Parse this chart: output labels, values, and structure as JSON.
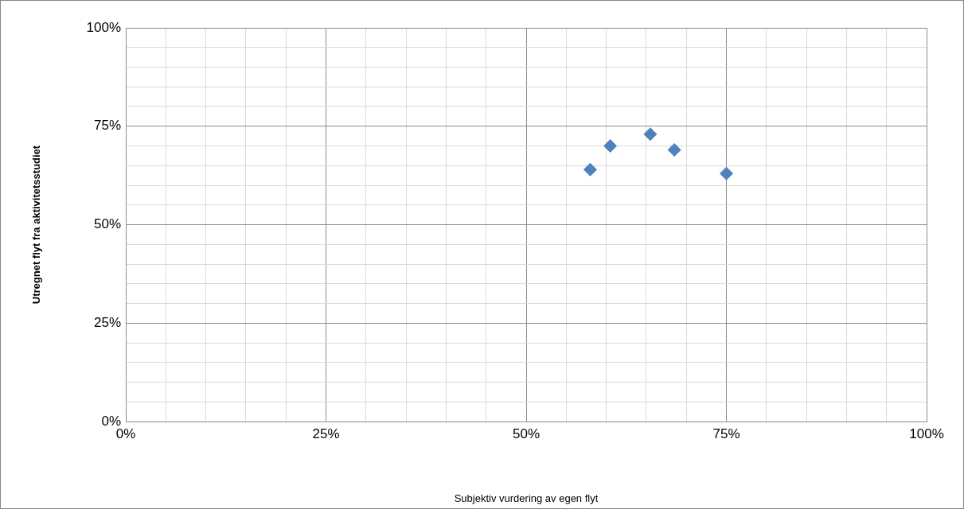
{
  "chart_data": {
    "type": "scatter",
    "xlabel": "Subjektiv vurdering av egen flyt",
    "ylabel": "Utregnet flyt fra aktivitetsstudiet",
    "x": [
      58,
      60.5,
      65.5,
      68.5,
      75
    ],
    "series": [
      {
        "color": "#4f81bd",
        "values": [
          64,
          70,
          73,
          69,
          63
        ]
      }
    ],
    "marker": "diamond",
    "grid": true,
    "legend": false,
    "xlim": [
      0,
      100
    ],
    "ylim": [
      0,
      100
    ],
    "xticks": [
      {
        "value": 0,
        "label": "0%"
      },
      {
        "value": 5,
        "label": null
      },
      {
        "value": 10,
        "label": null
      },
      {
        "value": 15,
        "label": null
      },
      {
        "value": 20,
        "label": null
      },
      {
        "value": 25,
        "label": "25%"
      },
      {
        "value": 30,
        "label": null
      },
      {
        "value": 35,
        "label": null
      },
      {
        "value": 40,
        "label": null
      },
      {
        "value": 45,
        "label": null
      },
      {
        "value": 50,
        "label": "50%"
      },
      {
        "value": 55,
        "label": null
      },
      {
        "value": 60,
        "label": null
      },
      {
        "value": 65,
        "label": null
      },
      {
        "value": 70,
        "label": null
      },
      {
        "value": 75,
        "label": "75%"
      },
      {
        "value": 80,
        "label": null
      },
      {
        "value": 85,
        "label": null
      },
      {
        "value": 90,
        "label": null
      },
      {
        "value": 95,
        "label": null
      },
      {
        "value": 100,
        "label": "100%"
      }
    ],
    "yticks": [
      {
        "value": 0,
        "label": "0%"
      },
      {
        "value": 5,
        "label": null
      },
      {
        "value": 10,
        "label": null
      },
      {
        "value": 15,
        "label": null
      },
      {
        "value": 20,
        "label": null
      },
      {
        "value": 25,
        "label": "25%"
      },
      {
        "value": 30,
        "label": null
      },
      {
        "value": 35,
        "label": null
      },
      {
        "value": 40,
        "label": null
      },
      {
        "value": 45,
        "label": null
      },
      {
        "value": 50,
        "label": "50%"
      },
      {
        "value": 55,
        "label": null
      },
      {
        "value": 60,
        "label": null
      },
      {
        "value": 65,
        "label": null
      },
      {
        "value": 70,
        "label": null
      },
      {
        "value": 75,
        "label": "75%"
      },
      {
        "value": 80,
        "label": null
      },
      {
        "value": 85,
        "label": null
      },
      {
        "value": 90,
        "label": null
      },
      {
        "value": 95,
        "label": null
      },
      {
        "value": 100,
        "label": "100%"
      }
    ]
  }
}
